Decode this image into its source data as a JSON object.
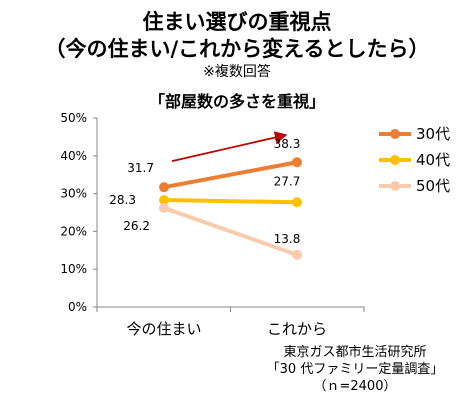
{
  "title_line1": "住まい選びの重視点",
  "title_line2": "（今の住まい/これから変えるとしたら）",
  "note": "※複数回答",
  "subtitle": "「部屋数の多さを重視」",
  "source": {
    "line1": "東京ガス都市生活研究所",
    "line2": "「30 代ファミリー定量調査」",
    "line3": "（ｎ=2400）"
  },
  "chart_data": {
    "type": "line",
    "categories": [
      "今の住まい",
      "これから"
    ],
    "series": [
      {
        "name": "30代",
        "values": [
          31.7,
          38.3
        ],
        "labels": [
          "31.7",
          "38.3"
        ],
        "color": "#ED7D31"
      },
      {
        "name": "40代",
        "values": [
          28.3,
          27.7
        ],
        "labels": [
          "28.3",
          "27.7"
        ],
        "color": "#FFC000"
      },
      {
        "name": "50代",
        "values": [
          26.2,
          13.8
        ],
        "labels": [
          "26.2",
          "13.8"
        ],
        "color": "#F8CBAD"
      }
    ],
    "ylim": [
      0,
      50
    ],
    "yticks": [
      "0%",
      "10%",
      "20%",
      "30%",
      "40%",
      "50%"
    ],
    "legend_position": "right",
    "arrow_color": "#C00000"
  }
}
